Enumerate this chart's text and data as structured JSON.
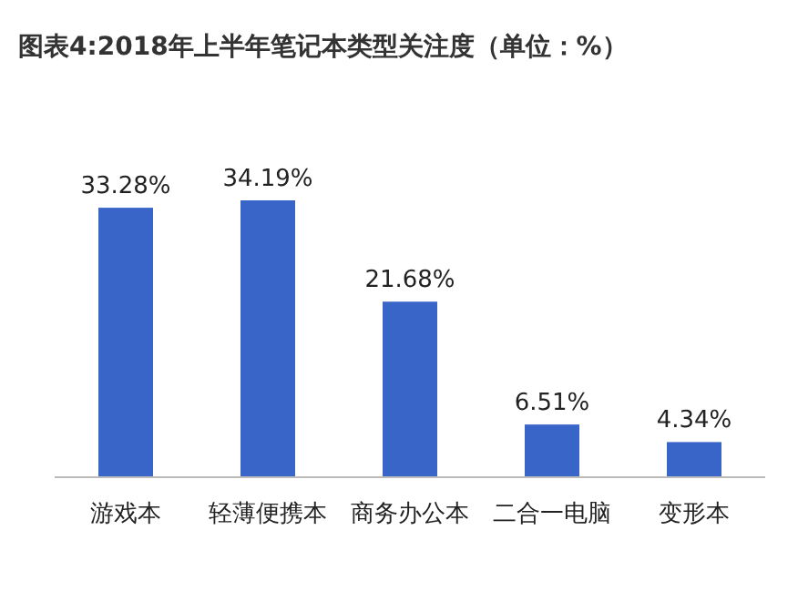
{
  "chart_data": {
    "type": "bar",
    "title": "图表4:2018年上半年笔记本类型关注度（单位：%）",
    "categories": [
      "游戏本",
      "轻薄便携本",
      "商务办公本",
      "二合一电脑",
      "变形本"
    ],
    "values": [
      33.28,
      34.19,
      21.68,
      6.51,
      4.34
    ],
    "value_labels": [
      "33.28%",
      "34.19%",
      "21.68%",
      "6.51%",
      "4.34%"
    ],
    "color": "#3a65c8"
  }
}
